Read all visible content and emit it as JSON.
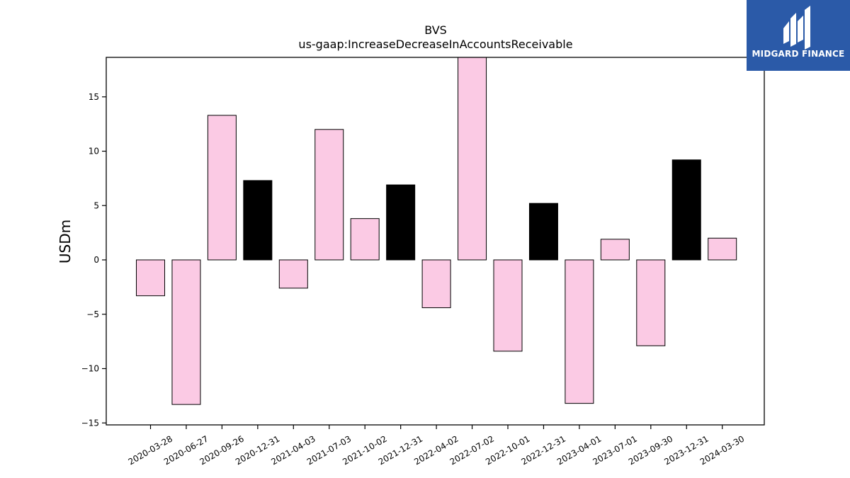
{
  "chart_data": {
    "type": "bar",
    "title": "BVS",
    "subtitle": "us-gaap:IncreaseDecreaseInAccountsReceivable",
    "xlabel": "",
    "ylabel": "USDm",
    "categories": [
      "2020-03-28",
      "2020-06-27",
      "2020-09-26",
      "2020-12-31",
      "2021-04-03",
      "2021-07-03",
      "2021-10-02",
      "2021-12-31",
      "2022-04-02",
      "2022-07-02",
      "2022-10-01",
      "2022-12-31",
      "2023-04-01",
      "2023-07-01",
      "2023-09-30",
      "2023-12-31",
      "2024-03-30"
    ],
    "values": [
      -3.3,
      -13.3,
      13.3,
      7.3,
      -2.6,
      12.0,
      3.8,
      6.9,
      -4.4,
      19.0,
      -8.4,
      5.2,
      -13.2,
      1.9,
      -7.9,
      9.2,
      2.0
    ],
    "colors": [
      "#fbcae4",
      "#fbcae4",
      "#fbcae4",
      "#000000",
      "#fbcae4",
      "#fbcae4",
      "#fbcae4",
      "#000000",
      "#fbcae4",
      "#fbcae4",
      "#fbcae4",
      "#000000",
      "#fbcae4",
      "#fbcae4",
      "#fbcae4",
      "#000000",
      "#fbcae4"
    ],
    "yticks": [
      -15,
      -10,
      -5,
      0,
      5,
      10,
      15
    ],
    "ylim": [
      -15.3,
      18.6
    ],
    "grid": false,
    "legend": "none"
  },
  "logo": {
    "text": "MIDGARD FINANCE",
    "bg": "#2b5aa8"
  }
}
